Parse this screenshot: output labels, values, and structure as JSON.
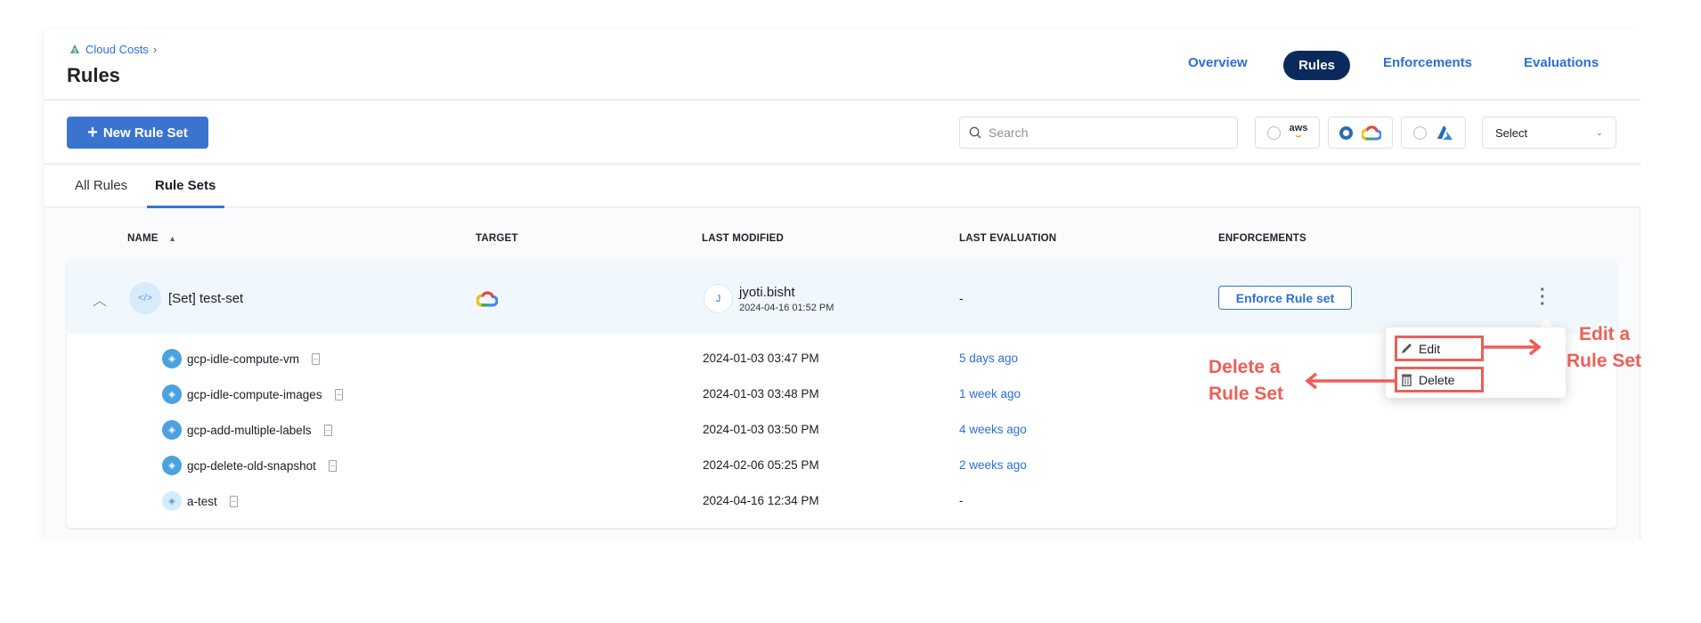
{
  "breadcrumb": {
    "label": "Cloud Costs",
    "icon": "cloud-costs-icon"
  },
  "page_title": "Rules",
  "nav": {
    "items": [
      {
        "label": "Overview",
        "active": false
      },
      {
        "label": "Rules",
        "active": true
      },
      {
        "label": "Enforcements",
        "active": false
      },
      {
        "label": "Evaluations",
        "active": false
      }
    ]
  },
  "toolbar": {
    "new_button": "New Rule Set",
    "search_placeholder": "Search",
    "providers": [
      {
        "name": "aws",
        "label": "aws",
        "selected": false
      },
      {
        "name": "gcp",
        "selected": true
      },
      {
        "name": "azure",
        "selected": false
      }
    ],
    "select_label": "Select"
  },
  "tabs": [
    {
      "label": "All Rules",
      "active": false
    },
    {
      "label": "Rule Sets",
      "active": true
    }
  ],
  "columns": [
    "NAME",
    "TARGET",
    "LAST MODIFIED",
    "LAST EVALUATION",
    "ENFORCEMENTS"
  ],
  "rule_set": {
    "name": "[Set] test-set",
    "target": "gcp",
    "user_initial": "J",
    "user": "jyoti.bisht",
    "modified": "2024-04-16 01:52 PM",
    "last_evaluation": "-",
    "enforce_button": "Enforce Rule set"
  },
  "rules": [
    {
      "name": "gcp-idle-compute-vm",
      "modified": "2024-01-03 03:47 PM",
      "evaluation": "5 days ago"
    },
    {
      "name": "gcp-idle-compute-images",
      "modified": "2024-01-03 03:48 PM",
      "evaluation": "1 week ago"
    },
    {
      "name": "gcp-add-multiple-labels",
      "modified": "2024-01-03 03:50 PM",
      "evaluation": "4 weeks ago"
    },
    {
      "name": "gcp-delete-old-snapshot",
      "modified": "2024-02-06 05:25 PM",
      "evaluation": "2 weeks ago"
    },
    {
      "name": "a-test",
      "modified": "2024-04-16 12:34 PM",
      "evaluation": "-"
    }
  ],
  "menu": {
    "edit": "Edit",
    "delete": "Delete"
  },
  "annotations": {
    "edit_line1": "Edit a",
    "edit_line2": "Rule Set",
    "delete_line1": "Delete a",
    "delete_line2": "Rule Set",
    "color": "#ec5f58"
  },
  "colors": {
    "primary": "#3a74d0",
    "link": "#2b6fd6",
    "nav_active": "#0b2a5c"
  }
}
